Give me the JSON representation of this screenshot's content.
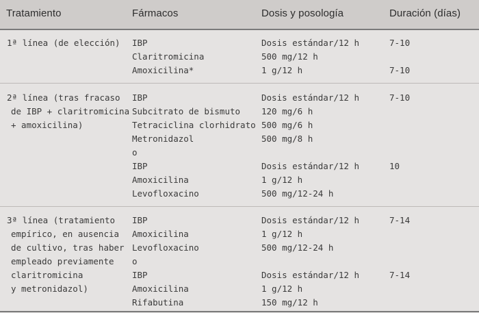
{
  "headers": {
    "tratamiento": "Tratamiento",
    "farmacos": "Fármacos",
    "dosis": "Dosis y posología",
    "duracion": "Duración (días)"
  },
  "groups": [
    {
      "tratamiento": [
        "1ª línea (de elección)"
      ],
      "farmacos": [
        "IBP",
        "Claritromicina",
        "Amoxicilina*"
      ],
      "dosis": [
        "Dosis estándar/12 h",
        "500 mg/12 h",
        "1 g/12 h"
      ],
      "duracion": [
        "7-10",
        "",
        "7-10"
      ]
    },
    {
      "tratamiento": [
        "2ª línea (tras fracaso",
        "de IBP + claritromicina",
        "+ amoxicilina)"
      ],
      "farmacos": [
        "IBP",
        "Subcitrato de bismuto",
        "Tetraciclina clorhidrato",
        "Metronidazol",
        "o",
        "IBP",
        "Amoxicilina",
        "Levofloxacino"
      ],
      "dosis": [
        "Dosis estándar/12 h",
        "120 mg/6 h",
        "500 mg/6 h",
        "500 mg/8 h",
        "",
        "Dosis estándar/12 h",
        "1 g/12 h",
        "500 mg/12-24 h"
      ],
      "duracion": [
        "7-10",
        "",
        "",
        "",
        "",
        "10",
        "",
        ""
      ]
    },
    {
      "tratamiento": [
        "3ª línea (tratamiento",
        "empírico, en ausencia",
        "de cultivo, tras haber",
        "empleado previamente",
        "claritromicina",
        "y metronidazol)"
      ],
      "farmacos": [
        "IBP",
        "Amoxicilina",
        "Levofloxacino",
        "o",
        "IBP",
        "Amoxicilina",
        "Rifabutina"
      ],
      "dosis": [
        "Dosis estándar/12 h",
        "1 g/12 h",
        "500 mg/12-24 h",
        "",
        "Dosis estándar/12 h",
        "1 g/12 h",
        "150 mg/12 h"
      ],
      "duracion": [
        "7-14",
        "",
        "",
        "",
        "7-14",
        "",
        ""
      ]
    }
  ]
}
